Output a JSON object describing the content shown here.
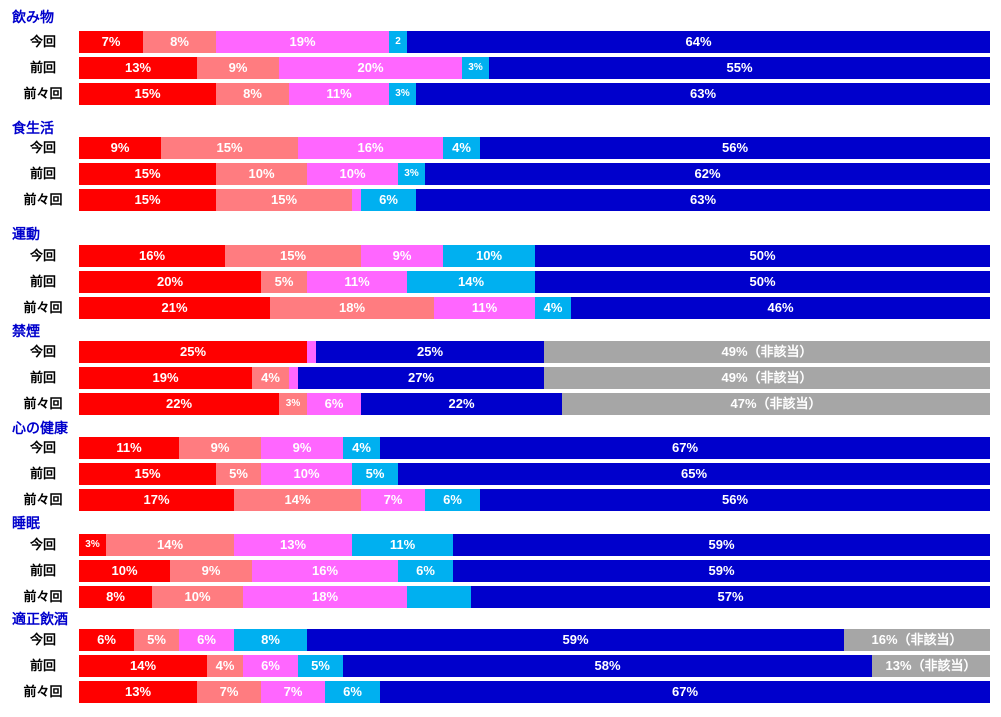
{
  "chart_data": {
    "type": "bar",
    "orientation": "horizontal",
    "stacked": true,
    "normalized_percent": true,
    "title": "",
    "xlabel": "",
    "ylabel": "",
    "xlim": [
      0,
      100
    ],
    "grid": false,
    "legend": "none",
    "title_color": "#0000CC",
    "palette": {
      "red": "#FF0000",
      "salmon": "#FF7C80",
      "magenta": "#FF66FF",
      "cyan": "#00B0F0",
      "blue": "#0000CC",
      "gray": "#A6A6A6"
    },
    "groups": [
      {
        "title": "飲み物",
        "rows": [
          {
            "label": "今回",
            "segments": [
              {
                "color": "red",
                "value": 7,
                "label": "7%"
              },
              {
                "color": "salmon",
                "value": 8,
                "label": "8%"
              },
              {
                "color": "magenta",
                "value": 19,
                "label": "19%"
              },
              {
                "color": "cyan",
                "value": 2,
                "label": "2"
              },
              {
                "color": "blue",
                "value": 64,
                "label": "64%"
              }
            ]
          },
          {
            "label": "前回",
            "segments": [
              {
                "color": "red",
                "value": 13,
                "label": "13%"
              },
              {
                "color": "salmon",
                "value": 9,
                "label": "9%"
              },
              {
                "color": "magenta",
                "value": 20,
                "label": "20%"
              },
              {
                "color": "cyan",
                "value": 3,
                "label": "3%"
              },
              {
                "color": "blue",
                "value": 55,
                "label": "55%"
              }
            ]
          },
          {
            "label": "前々回",
            "segments": [
              {
                "color": "red",
                "value": 15,
                "label": "15%"
              },
              {
                "color": "salmon",
                "value": 8,
                "label": "8%"
              },
              {
                "color": "magenta",
                "value": 11,
                "label": "11%"
              },
              {
                "color": "cyan",
                "value": 3,
                "label": "3%"
              },
              {
                "color": "blue",
                "value": 63,
                "label": "63%"
              }
            ]
          }
        ]
      },
      {
        "title": "食生活",
        "rows": [
          {
            "label": "今回",
            "segments": [
              {
                "color": "red",
                "value": 9,
                "label": "9%"
              },
              {
                "color": "salmon",
                "value": 15,
                "label": "15%"
              },
              {
                "color": "magenta",
                "value": 16,
                "label": "16%"
              },
              {
                "color": "cyan",
                "value": 4,
                "label": "4%"
              },
              {
                "color": "blue",
                "value": 56,
                "label": "56%"
              }
            ]
          },
          {
            "label": "前回",
            "segments": [
              {
                "color": "red",
                "value": 15,
                "label": "15%"
              },
              {
                "color": "salmon",
                "value": 10,
                "label": "10%"
              },
              {
                "color": "magenta",
                "value": 10,
                "label": "10%"
              },
              {
                "color": "cyan",
                "value": 3,
                "label": "3%"
              },
              {
                "color": "blue",
                "value": 62,
                "label": "62%"
              }
            ]
          },
          {
            "label": "前々回",
            "segments": [
              {
                "color": "red",
                "value": 15,
                "label": "15%"
              },
              {
                "color": "salmon",
                "value": 15,
                "label": "15%"
              },
              {
                "color": "magenta",
                "value": 1,
                "label": ""
              },
              {
                "color": "cyan",
                "value": 6,
                "label": "6%"
              },
              {
                "color": "blue",
                "value": 63,
                "label": "63%"
              }
            ]
          }
        ]
      },
      {
        "title": "運動",
        "rows": [
          {
            "label": "今回",
            "segments": [
              {
                "color": "red",
                "value": 16,
                "label": "16%"
              },
              {
                "color": "salmon",
                "value": 15,
                "label": "15%"
              },
              {
                "color": "magenta",
                "value": 9,
                "label": "9%"
              },
              {
                "color": "cyan",
                "value": 10,
                "label": "10%"
              },
              {
                "color": "blue",
                "value": 50,
                "label": "50%"
              }
            ]
          },
          {
            "label": "前回",
            "segments": [
              {
                "color": "red",
                "value": 20,
                "label": "20%"
              },
              {
                "color": "salmon",
                "value": 5,
                "label": "5%"
              },
              {
                "color": "magenta",
                "value": 11,
                "label": "11%"
              },
              {
                "color": "cyan",
                "value": 14,
                "label": "14%"
              },
              {
                "color": "blue",
                "value": 50,
                "label": "50%"
              }
            ]
          },
          {
            "label": "前々回",
            "segments": [
              {
                "color": "red",
                "value": 21,
                "label": "21%"
              },
              {
                "color": "salmon",
                "value": 18,
                "label": "18%"
              },
              {
                "color": "magenta",
                "value": 11,
                "label": "11%"
              },
              {
                "color": "cyan",
                "value": 4,
                "label": "4%"
              },
              {
                "color": "blue",
                "value": 46,
                "label": "46%"
              }
            ]
          }
        ]
      },
      {
        "title": "禁煙",
        "rows": [
          {
            "label": "今回",
            "segments": [
              {
                "color": "red",
                "value": 25,
                "label": "25%"
              },
              {
                "color": "magenta",
                "value": 1,
                "label": ""
              },
              {
                "color": "blue",
                "value": 25,
                "label": "25%"
              },
              {
                "color": "gray",
                "value": 49,
                "label": "49%（非該当）"
              }
            ]
          },
          {
            "label": "前回",
            "segments": [
              {
                "color": "red",
                "value": 19,
                "label": "19%"
              },
              {
                "color": "salmon",
                "value": 4,
                "label": "4%"
              },
              {
                "color": "magenta",
                "value": 1,
                "label": ""
              },
              {
                "color": "blue",
                "value": 27,
                "label": "27%"
              },
              {
                "color": "gray",
                "value": 49,
                "label": "49%（非該当）"
              }
            ]
          },
          {
            "label": "前々回",
            "segments": [
              {
                "color": "red",
                "value": 22,
                "label": "22%"
              },
              {
                "color": "salmon",
                "value": 3,
                "label": "3%"
              },
              {
                "color": "magenta",
                "value": 6,
                "label": "6%"
              },
              {
                "color": "blue",
                "value": 22,
                "label": "22%"
              },
              {
                "color": "gray",
                "value": 47,
                "label": "47%（非該当）"
              }
            ]
          }
        ]
      },
      {
        "title": "心の健康",
        "rows": [
          {
            "label": "今回",
            "segments": [
              {
                "color": "red",
                "value": 11,
                "label": "11%"
              },
              {
                "color": "salmon",
                "value": 9,
                "label": "9%"
              },
              {
                "color": "magenta",
                "value": 9,
                "label": "9%"
              },
              {
                "color": "cyan",
                "value": 4,
                "label": "4%"
              },
              {
                "color": "blue",
                "value": 67,
                "label": "67%"
              }
            ]
          },
          {
            "label": "前回",
            "segments": [
              {
                "color": "red",
                "value": 15,
                "label": "15%"
              },
              {
                "color": "salmon",
                "value": 5,
                "label": "5%"
              },
              {
                "color": "magenta",
                "value": 10,
                "label": "10%"
              },
              {
                "color": "cyan",
                "value": 5,
                "label": "5%"
              },
              {
                "color": "blue",
                "value": 65,
                "label": "65%"
              }
            ]
          },
          {
            "label": "前々回",
            "segments": [
              {
                "color": "red",
                "value": 17,
                "label": "17%"
              },
              {
                "color": "salmon",
                "value": 14,
                "label": "14%"
              },
              {
                "color": "magenta",
                "value": 7,
                "label": "7%"
              },
              {
                "color": "cyan",
                "value": 6,
                "label": "6%"
              },
              {
                "color": "blue",
                "value": 56,
                "label": "56%"
              }
            ]
          }
        ]
      },
      {
        "title": "睡眠",
        "rows": [
          {
            "label": "今回",
            "segments": [
              {
                "color": "red",
                "value": 3,
                "label": "3%"
              },
              {
                "color": "salmon",
                "value": 14,
                "label": "14%"
              },
              {
                "color": "magenta",
                "value": 13,
                "label": "13%"
              },
              {
                "color": "cyan",
                "value": 11,
                "label": "11%"
              },
              {
                "color": "blue",
                "value": 59,
                "label": "59%"
              }
            ]
          },
          {
            "label": "前回",
            "segments": [
              {
                "color": "red",
                "value": 10,
                "label": "10%"
              },
              {
                "color": "salmon",
                "value": 9,
                "label": "9%"
              },
              {
                "color": "magenta",
                "value": 16,
                "label": "16%"
              },
              {
                "color": "cyan",
                "value": 6,
                "label": "6%"
              },
              {
                "color": "blue",
                "value": 59,
                "label": "59%"
              }
            ]
          },
          {
            "label": "前々回",
            "segments": [
              {
                "color": "red",
                "value": 8,
                "label": "8%"
              },
              {
                "color": "salmon",
                "value": 10,
                "label": "10%"
              },
              {
                "color": "magenta",
                "value": 18,
                "label": "18%"
              },
              {
                "color": "cyan",
                "value": 7,
                "label": ""
              },
              {
                "color": "blue",
                "value": 57,
                "label": "57%"
              }
            ]
          }
        ]
      },
      {
        "title": "適正飲酒",
        "rows": [
          {
            "label": "今回",
            "segments": [
              {
                "color": "red",
                "value": 6,
                "label": "6%"
              },
              {
                "color": "salmon",
                "value": 5,
                "label": "5%"
              },
              {
                "color": "magenta",
                "value": 6,
                "label": "6%"
              },
              {
                "color": "cyan",
                "value": 8,
                "label": "8%"
              },
              {
                "color": "blue",
                "value": 59,
                "label": "59%"
              },
              {
                "color": "gray",
                "value": 16,
                "label": "16%（非該当）"
              }
            ]
          },
          {
            "label": "前回",
            "segments": [
              {
                "color": "red",
                "value": 14,
                "label": "14%"
              },
              {
                "color": "salmon",
                "value": 4,
                "label": "4%"
              },
              {
                "color": "magenta",
                "value": 6,
                "label": "6%"
              },
              {
                "color": "cyan",
                "value": 5,
                "label": "5%"
              },
              {
                "color": "blue",
                "value": 58,
                "label": "58%"
              },
              {
                "color": "gray",
                "value": 13,
                "label": "13%（非該当）"
              }
            ]
          },
          {
            "label": "前々回",
            "segments": [
              {
                "color": "red",
                "value": 13,
                "label": "13%"
              },
              {
                "color": "salmon",
                "value": 7,
                "label": "7%"
              },
              {
                "color": "magenta",
                "value": 7,
                "label": "7%"
              },
              {
                "color": "cyan",
                "value": 6,
                "label": "6%"
              },
              {
                "color": "blue",
                "value": 67,
                "label": "67%"
              }
            ]
          }
        ]
      }
    ]
  }
}
